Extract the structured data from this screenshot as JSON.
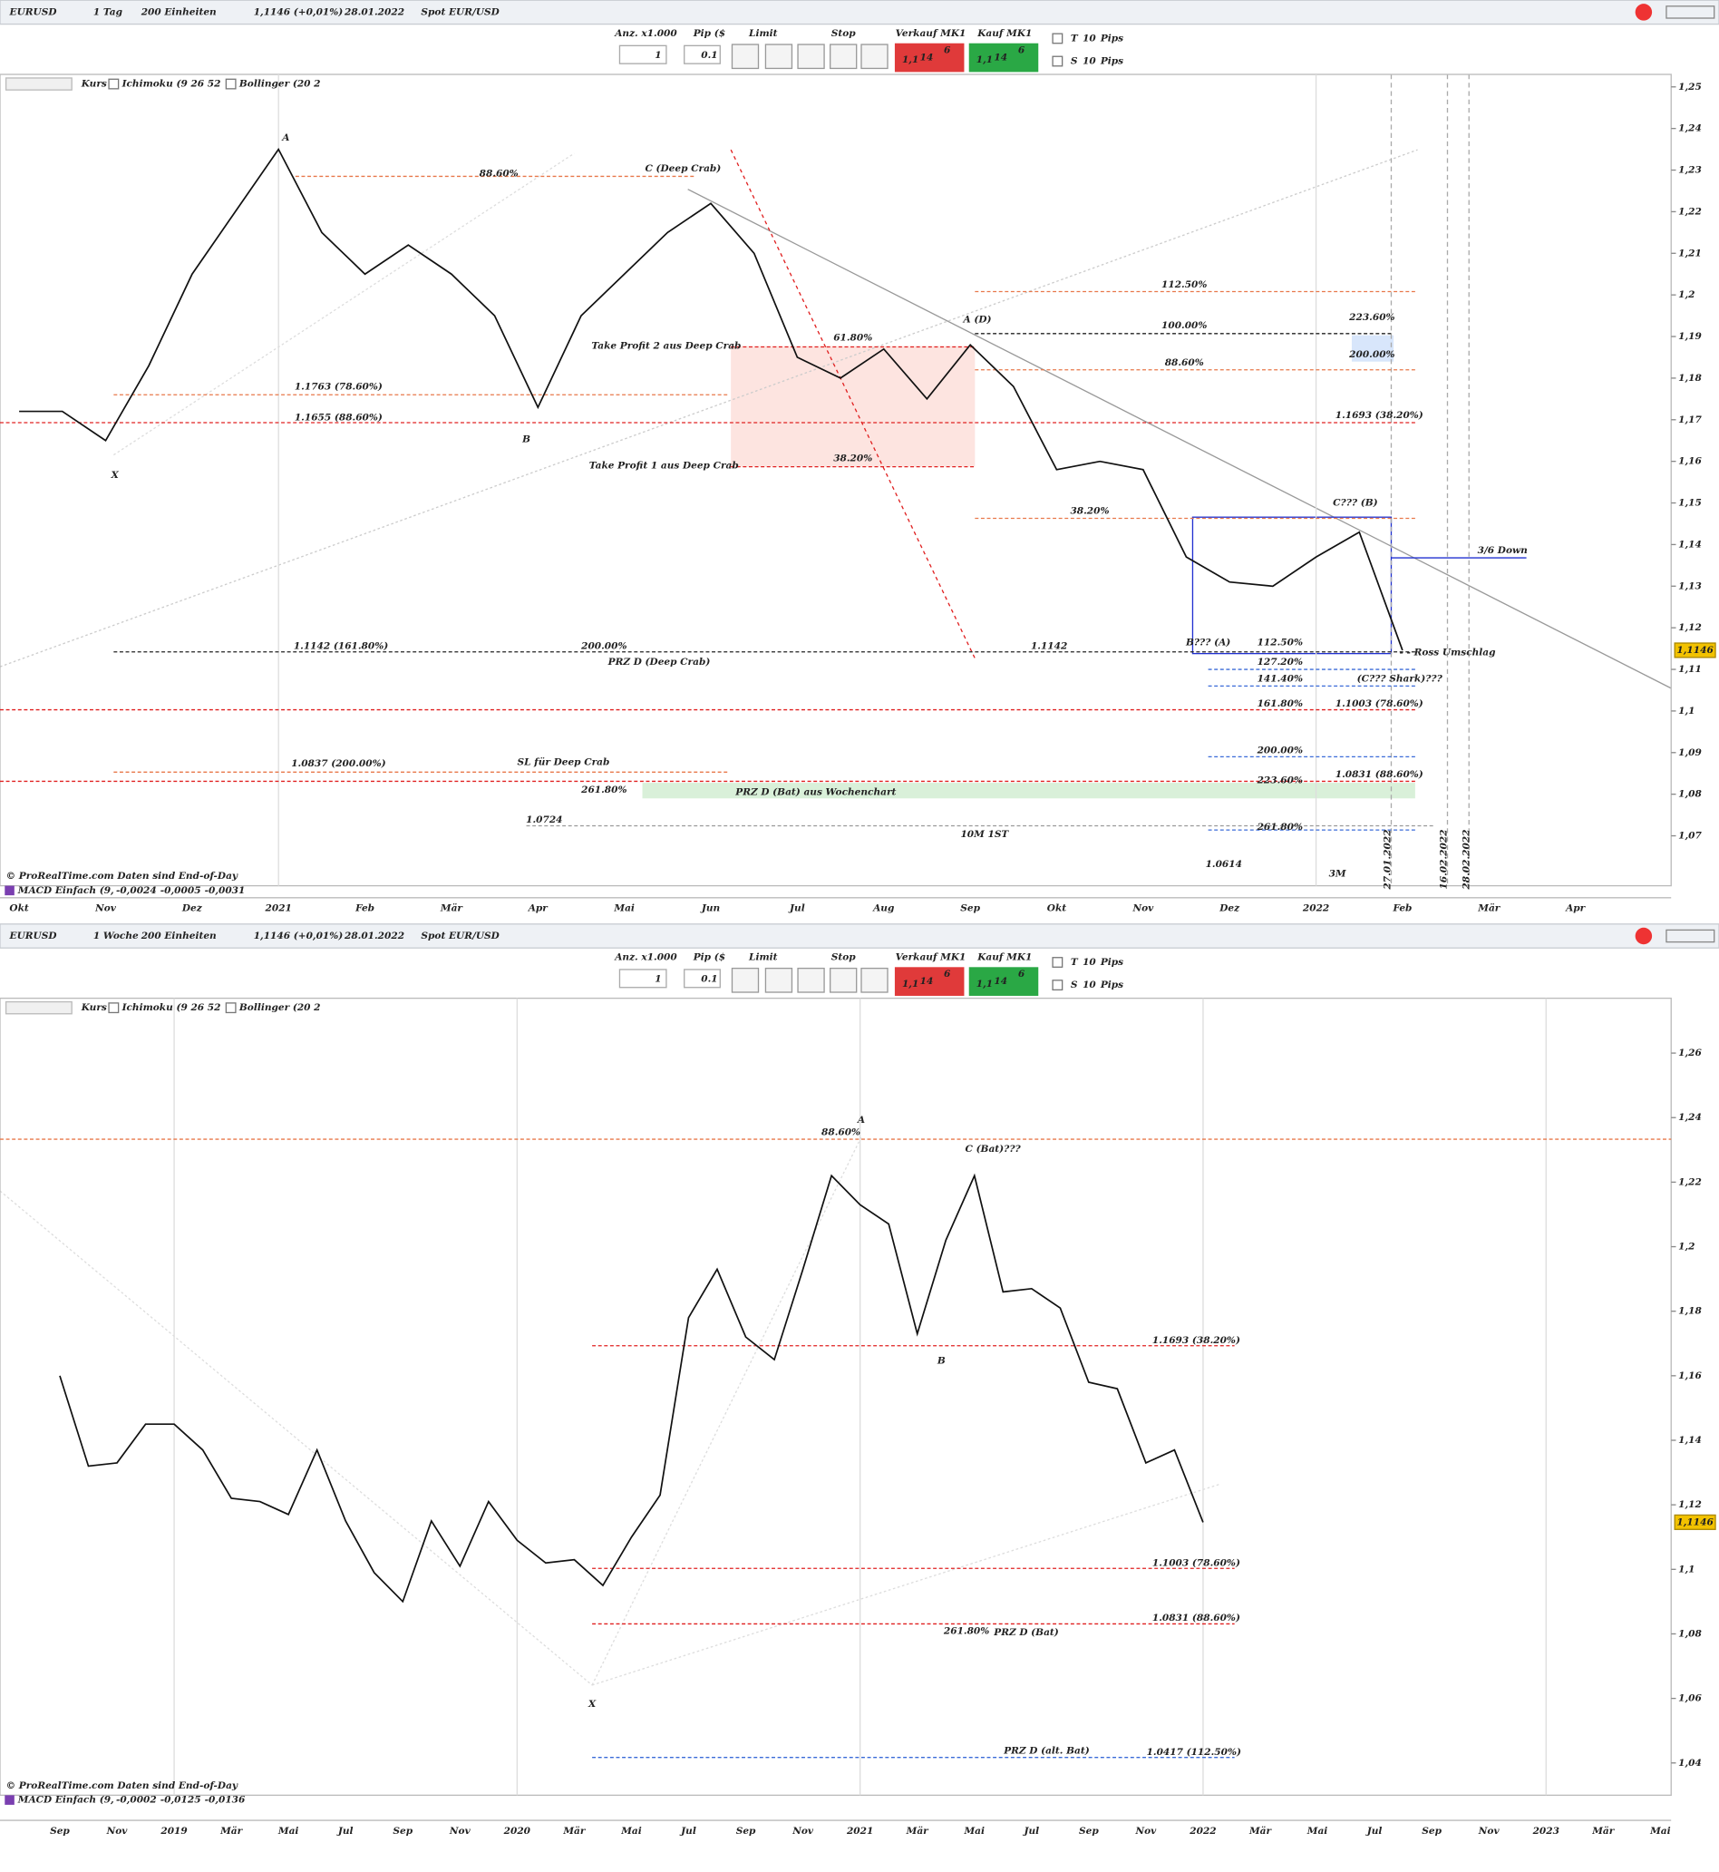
{
  "panels": [
    {
      "toolbar": {
        "symbol": "EURUSD",
        "timeframe": "1 Tag",
        "units": "200 Einheiten",
        "quote": "1,1146 (+0,01%)",
        "date": "28.01.2022",
        "instrument": "Spot EUR/USD"
      },
      "order": {
        "qty_label": "Anz. x1.000",
        "pip_label": "Pip ($",
        "qty": "1",
        "pip": "0.1",
        "limit": "Limit",
        "stop": "Stop",
        "sell": "Verkauf MK1",
        "buy": "Kauf MK1",
        "price_big": "1,1",
        "price_pips": "14",
        "price_frac": "6",
        "t": "T",
        "s": "S",
        "t_pips": "10",
        "s_pips": "10",
        "pips_label": "Pips"
      },
      "indicators": [
        "Kurs",
        "Ichimoku (9 26 52",
        "Bollinger (20 2"
      ],
      "chart": {
        "type": "line",
        "categories": [
          "Okt",
          "Nov",
          "Dez",
          "2021",
          "Feb",
          "Mär",
          "Apr",
          "Mai",
          "Jun",
          "Jul",
          "Aug",
          "Sep",
          "Okt",
          "Nov",
          "Dez",
          "2022",
          "Feb",
          "Mär",
          "Apr"
        ],
        "price": [
          1.172,
          1.172,
          1.165,
          1.183,
          1.205,
          1.22,
          1.235,
          1.215,
          1.205,
          1.212,
          1.205,
          1.195,
          1.173,
          1.195,
          1.205,
          1.215,
          1.222,
          1.21,
          1.185,
          1.18,
          1.187,
          1.175,
          1.188,
          1.178,
          1.158,
          1.16,
          1.158,
          1.137,
          1.131,
          1.13,
          1.137,
          1.143,
          1.1146
        ],
        "ylim": [
          1.058,
          1.253
        ],
        "yticks": [
          {
            "value": 1.25,
            "label": "1,25"
          },
          {
            "value": 1.24,
            "label": "1,24"
          },
          {
            "value": 1.23,
            "label": "1,23"
          },
          {
            "value": 1.22,
            "label": "1,22"
          },
          {
            "value": 1.21,
            "label": "1,21"
          },
          {
            "value": 1.2,
            "label": "1,2"
          },
          {
            "value": 1.19,
            "label": "1,19"
          },
          {
            "value": 1.18,
            "label": "1,18"
          },
          {
            "value": 1.17,
            "label": "1,17"
          },
          {
            "value": 1.16,
            "label": "1,16"
          },
          {
            "value": 1.15,
            "label": "1,15"
          },
          {
            "value": 1.14,
            "label": "1,14"
          },
          {
            "value": 1.13,
            "label": "1,13"
          },
          {
            "value": 1.12,
            "label": "1,12"
          },
          {
            "value": 1.11,
            "label": "1,11"
          },
          {
            "value": 1.1,
            "label": "1,1"
          },
          {
            "value": 1.09,
            "label": "1,09"
          },
          {
            "value": 1.08,
            "label": "1,08"
          },
          {
            "value": 1.07,
            "label": "1,07"
          }
        ],
        "last_price_label": "1,1146",
        "levels": [
          {
            "value": 1.2285,
            "color": "#e8784a"
          },
          {
            "value": 1.1875,
            "color": "#e02020"
          },
          {
            "value": 1.1587,
            "color": "#e02020"
          },
          {
            "value": 1.176,
            "color": "#e8784a"
          },
          {
            "value": 1.1693,
            "color": "#e02020"
          },
          {
            "value": 1.2008,
            "color": "#e8784a"
          },
          {
            "value": 1.1907,
            "color": "#222222"
          },
          {
            "value": 1.182,
            "color": "#e8784a"
          },
          {
            "value": 1.1463,
            "color": "#e8784a"
          },
          {
            "value": 1.1142,
            "color": "#222222"
          },
          {
            "value": 1.1003,
            "color": "#e02020"
          },
          {
            "value": 1.0853,
            "color": "#e8784a"
          },
          {
            "value": 1.0831,
            "color": "#e02020"
          },
          {
            "value": 1.0724,
            "color": "#999999"
          },
          {
            "value": 1.11,
            "color": "#3a6bd8"
          },
          {
            "value": 1.106,
            "color": "#3a6bd8"
          },
          {
            "value": 1.089,
            "color": "#3a6bd8"
          },
          {
            "value": 1.0714,
            "color": "#3a6bd8"
          }
        ],
        "annotations": [
          "A",
          "X",
          "B",
          "C (Deep Crab)",
          "88.60%",
          "Take Profit 2 aus Deep Crab",
          "61.80%",
          "Take Profit 1 aus Deep Crab",
          "38.20%",
          "1.1763 (78.60%)",
          "1.1655 (88.60%)",
          "112.50%",
          "A (D)",
          "100.00%",
          "223.60%",
          "200.00%",
          "88.60%",
          "1.1693 (38.20%)",
          "38.20%",
          "C??? (B)",
          "3/6 Down",
          "1.1142 (161.80%)",
          "200.00%",
          "1.1142",
          "PRZ D (Deep Crab)",
          "B??? (A)",
          "112.50%",
          "127.20%",
          "141.40%",
          "(C??? Shark)???",
          "- - Ross Umschlag",
          "161.80%",
          "1.1003 (78.60%)",
          "200.00%",
          "1.0837 (200.00%)",
          "SL für Deep Crab",
          "1.0831 (88.60%)",
          "223.60%",
          "261.80%",
          "PRZ D (Bat) aus Wochenchart",
          "1.0724",
          "261.80%",
          "10M 1ST",
          "1.0614",
          "3M"
        ],
        "vertical_dates": [
          "27.01.2022",
          "16.02.2022",
          "28.02.2022"
        ],
        "copyright": "© ProRealTime.com  Daten sind End-of-Day",
        "macd": {
          "name": "MACD Einfach (9,",
          "values": [
            "-0,0024",
            "-0,0005",
            "-0,0031"
          ]
        }
      }
    },
    {
      "toolbar": {
        "symbol": "EURUSD",
        "timeframe": "1 Woche",
        "units": "200 Einheiten",
        "quote": "1,1146 (+0,01%)",
        "date": "28.01.2022",
        "instrument": "Spot EUR/USD"
      },
      "order": {
        "qty_label": "Anz. x1.000",
        "pip_label": "Pip ($",
        "qty": "1",
        "pip": "0.1",
        "limit": "Limit",
        "stop": "Stop",
        "sell": "Verkauf MK1",
        "buy": "Kauf MK1",
        "price_big": "1,1",
        "price_pips": "14",
        "price_frac": "6",
        "t": "T",
        "s": "S",
        "t_pips": "10",
        "s_pips": "10",
        "pips_label": "Pips"
      },
      "indicators": [
        "Kurs",
        "Ichimoku (9 26 52",
        "Bollinger (20 2"
      ],
      "chart": {
        "type": "line",
        "categories": [
          "Sep",
          "Nov",
          "2019",
          "Mär",
          "Mai",
          "Jul",
          "Sep",
          "Nov",
          "2020",
          "Mär",
          "Mai",
          "Jul",
          "Sep",
          "Nov",
          "2021",
          "Mär",
          "Mai",
          "Jul",
          "Sep",
          "Nov",
          "2022",
          "Mär",
          "Mai",
          "Jul",
          "Sep",
          "Nov",
          "2023",
          "Mär",
          "Mai"
        ],
        "price": [
          1.16,
          1.132,
          1.133,
          1.145,
          1.145,
          1.137,
          1.122,
          1.121,
          1.117,
          1.137,
          1.115,
          1.099,
          1.09,
          1.115,
          1.101,
          1.121,
          1.109,
          1.102,
          1.103,
          1.095,
          1.11,
          1.123,
          1.178,
          1.193,
          1.172,
          1.165,
          1.193,
          1.222,
          1.213,
          1.207,
          1.173,
          1.202,
          1.222,
          1.186,
          1.187,
          1.181,
          1.158,
          1.156,
          1.133,
          1.137,
          1.1146
        ],
        "ylim": [
          1.03,
          1.277
        ],
        "yticks": [
          {
            "value": 1.26,
            "label": "1,26"
          },
          {
            "value": 1.24,
            "label": "1,24"
          },
          {
            "value": 1.22,
            "label": "1,22"
          },
          {
            "value": 1.2,
            "label": "1,2"
          },
          {
            "value": 1.18,
            "label": "1,18"
          },
          {
            "value": 1.16,
            "label": "1,16"
          },
          {
            "value": 1.14,
            "label": "1,14"
          },
          {
            "value": 1.12,
            "label": "1,12"
          },
          {
            "value": 1.1,
            "label": "1,1"
          },
          {
            "value": 1.08,
            "label": "1,08"
          },
          {
            "value": 1.06,
            "label": "1,06"
          },
          {
            "value": 1.04,
            "label": "1,04"
          }
        ],
        "last_price_label": "1,1146",
        "levels": [
          {
            "value": 1.2333,
            "color": "#e8784a"
          },
          {
            "value": 1.1693,
            "color": "#e02020"
          },
          {
            "value": 1.1003,
            "color": "#e02020"
          },
          {
            "value": 1.0831,
            "color": "#e02020"
          },
          {
            "value": 1.0417,
            "color": "#3a6bd8"
          }
        ],
        "annotations": [
          "88.60%",
          "A",
          "C (Bat)???",
          "B",
          "X",
          "1.1693 (38.20%)",
          "1.1003 (78.60%)",
          "1.0831 (88.60%)",
          "261.80%",
          "PRZ D (Bat)",
          "PRZ D (alt. Bat)",
          "1.0417 (112.50%)"
        ],
        "vertical_dates": [],
        "copyright": "© ProRealTime.com  Daten sind End-of-Day",
        "macd": {
          "name": "MACD Einfach (9,",
          "values": [
            "-0,0002",
            "-0,0125",
            "-0,0136"
          ]
        }
      }
    }
  ]
}
